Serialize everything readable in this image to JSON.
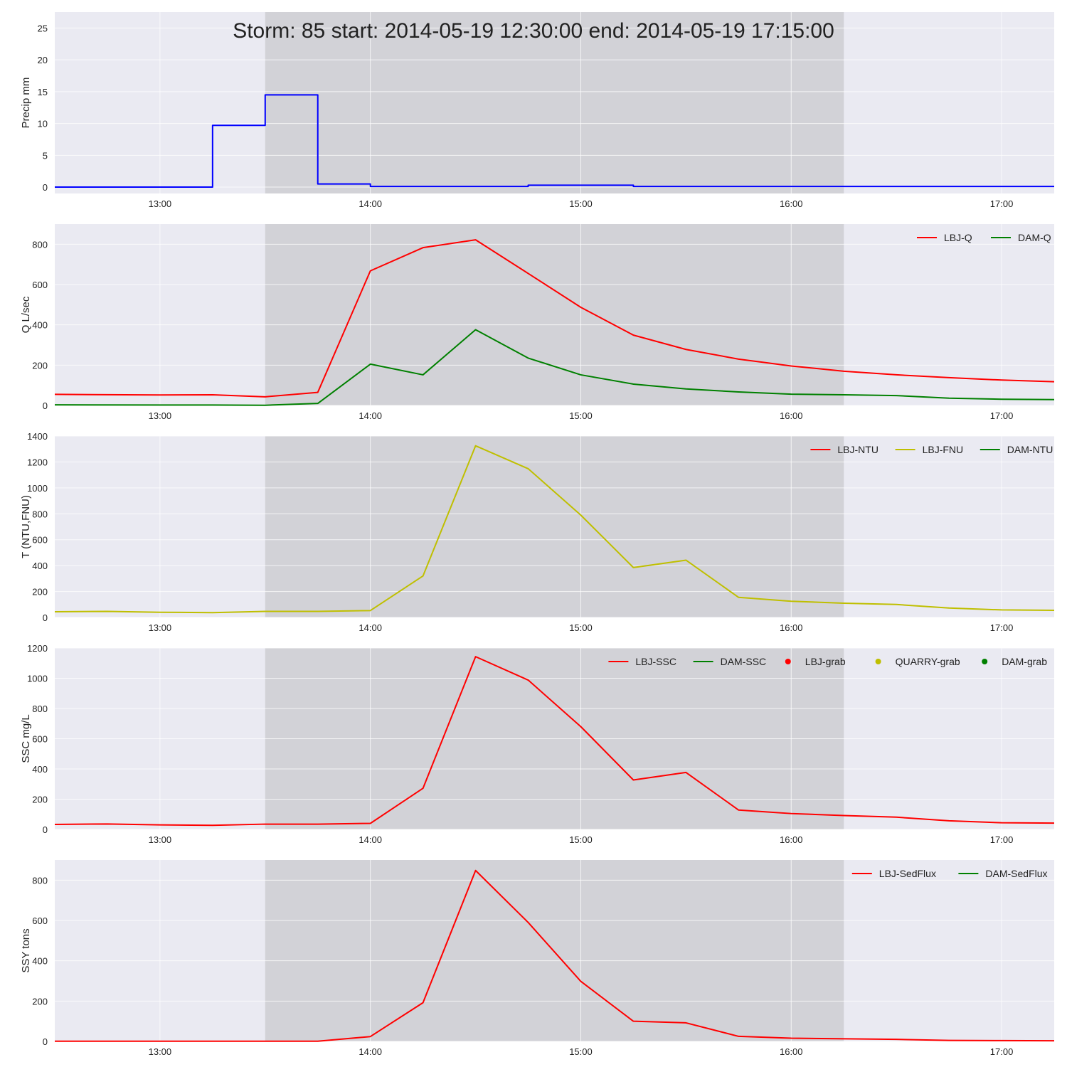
{
  "title": "Storm: 85 start: 2014-05-19 12:30:00 end: 2014-05-19 17:15:00",
  "colors": {
    "background": "#eaeaf2",
    "grid": "#ffffff",
    "storm_shade": "#c8c8cc"
  },
  "chart_data": [
    {
      "type": "line",
      "ylabel": "Precip mm",
      "xlim": [
        "12:30",
        "17:15"
      ],
      "ylim": [
        -1,
        27.5
      ],
      "yticks": [
        0,
        5,
        10,
        15,
        20,
        25
      ],
      "xticks": [
        "13:00",
        "14:00",
        "15:00",
        "16:00",
        "17:00"
      ],
      "shaded_span": [
        "13:30",
        "16:15"
      ],
      "grid": true,
      "legend": null,
      "series": [
        {
          "style": "steps",
          "color": "#0000ff",
          "x": [
            "12:30",
            "13:15",
            "13:30",
            "13:45",
            "14:00",
            "14:45",
            "15:15",
            "17:15"
          ],
          "values": [
            0,
            9.7,
            14.5,
            0.5,
            0.1,
            0.3,
            0.1,
            0.1
          ]
        }
      ]
    },
    {
      "type": "line",
      "ylabel": "Q L/sec",
      "xlim": [
        "12:30",
        "17:15"
      ],
      "ylim": [
        0,
        900
      ],
      "yticks": [
        0,
        200,
        400,
        600,
        800
      ],
      "xticks": [
        "13:00",
        "14:00",
        "15:00",
        "16:00",
        "17:00"
      ],
      "shaded_span": [
        "13:30",
        "16:15"
      ],
      "grid": true,
      "legend": "top-right",
      "series": [
        {
          "name": "LBJ-Q",
          "color": "#ff0000",
          "x": [
            "12:30",
            "13:00",
            "13:15",
            "13:30",
            "13:45",
            "14:00",
            "14:15",
            "14:30",
            "14:45",
            "15:00",
            "15:15",
            "15:30",
            "15:45",
            "16:00",
            "16:15",
            "16:30",
            "16:45",
            "17:00",
            "17:15"
          ],
          "values": [
            55,
            52,
            53,
            43,
            65,
            668,
            783,
            822,
            655,
            487,
            349,
            278,
            230,
            196,
            170,
            152,
            138,
            126,
            118
          ]
        },
        {
          "name": "DAM-Q",
          "color": "#008000",
          "x": [
            "12:30",
            "13:00",
            "13:15",
            "13:30",
            "13:45",
            "14:00",
            "14:15",
            "14:30",
            "14:45",
            "15:00",
            "15:15",
            "15:30",
            "15:45",
            "16:00",
            "16:15",
            "16:30",
            "16:45",
            "17:00",
            "17:15"
          ],
          "values": [
            3,
            2,
            2,
            1,
            10,
            205,
            152,
            376,
            235,
            152,
            106,
            82,
            67,
            56,
            53,
            49,
            36,
            31,
            29
          ]
        }
      ]
    },
    {
      "type": "line",
      "ylabel": "T (NTU,FNU)",
      "xlim": [
        "12:30",
        "17:15"
      ],
      "ylim": [
        0,
        1400
      ],
      "yticks": [
        0,
        200,
        400,
        600,
        800,
        1000,
        1200,
        1400
      ],
      "xticks": [
        "13:00",
        "14:00",
        "15:00",
        "16:00",
        "17:00"
      ],
      "shaded_span": [
        "13:30",
        "16:15"
      ],
      "grid": true,
      "legend": "top-right",
      "series": [
        {
          "name": "LBJ-NTU",
          "color": "#ff0000",
          "x": [],
          "values": []
        },
        {
          "name": "LBJ-FNU",
          "color": "#bfbf00",
          "x": [
            "12:30",
            "12:45",
            "13:00",
            "13:15",
            "13:30",
            "13:45",
            "14:00",
            "14:15",
            "14:30",
            "14:45",
            "15:00",
            "15:15",
            "15:30",
            "15:45",
            "16:00",
            "16:15",
            "16:30",
            "16:45",
            "17:00",
            "17:15"
          ],
          "values": [
            44,
            47,
            40,
            37,
            47,
            47,
            53,
            320,
            1325,
            1148,
            790,
            385,
            442,
            155,
            125,
            110,
            100,
            73,
            58,
            55
          ]
        },
        {
          "name": "DAM-NTU",
          "color": "#008000",
          "x": [],
          "values": []
        }
      ]
    },
    {
      "type": "line",
      "ylabel": "SSC mg/L",
      "xlim": [
        "12:30",
        "17:15"
      ],
      "ylim": [
        0,
        1200
      ],
      "yticks": [
        0,
        200,
        400,
        600,
        800,
        1000,
        1200
      ],
      "xticks": [
        "13:00",
        "14:00",
        "15:00",
        "16:00",
        "17:00"
      ],
      "shaded_span": [
        "13:30",
        "16:15"
      ],
      "grid": true,
      "legend": "top-right",
      "series": [
        {
          "name": "LBJ-SSC",
          "color": "#ff0000",
          "x": [
            "12:30",
            "12:45",
            "13:00",
            "13:15",
            "13:30",
            "13:45",
            "14:00",
            "14:15",
            "14:30",
            "14:45",
            "15:00",
            "15:15",
            "15:30",
            "15:45",
            "16:00",
            "16:15",
            "16:30",
            "16:45",
            "17:00",
            "17:15"
          ],
          "values": [
            33,
            36,
            30,
            27,
            35,
            35,
            40,
            272,
            1143,
            988,
            680,
            327,
            377,
            128,
            105,
            92,
            81,
            57,
            44,
            42
          ]
        },
        {
          "name": "DAM-SSC",
          "color": "#008000",
          "x": [],
          "values": []
        },
        {
          "name": "LBJ-grab",
          "color": "#ff0000",
          "marker": "dot",
          "x": [],
          "values": []
        },
        {
          "name": "QUARRY-grab",
          "color": "#bfbf00",
          "marker": "dot",
          "x": [],
          "values": []
        },
        {
          "name": "DAM-grab",
          "color": "#008000",
          "marker": "dot",
          "x": [],
          "values": []
        }
      ]
    },
    {
      "type": "line",
      "ylabel": "SSY tons",
      "xlim": [
        "12:30",
        "17:15"
      ],
      "ylim": [
        0,
        900
      ],
      "yticks": [
        0,
        200,
        400,
        600,
        800
      ],
      "xticks": [
        "13:00",
        "14:00",
        "15:00",
        "16:00",
        "17:00"
      ],
      "shaded_span": [
        "13:30",
        "16:15"
      ],
      "grid": true,
      "legend": "top-right",
      "series": [
        {
          "name": "LBJ-SedFlux",
          "color": "#ff0000",
          "x": [
            "12:30",
            "13:00",
            "13:30",
            "13:45",
            "14:00",
            "14:15",
            "14:30",
            "14:45",
            "15:00",
            "15:15",
            "15:30",
            "15:45",
            "16:00",
            "16:30",
            "16:45",
            "17:00",
            "17:15"
          ],
          "values": [
            1,
            1,
            1,
            1,
            24,
            192,
            848,
            590,
            298,
            100,
            92,
            25,
            16,
            10,
            5,
            4,
            3
          ]
        },
        {
          "name": "DAM-SedFlux",
          "color": "#008000",
          "x": [],
          "values": []
        }
      ]
    }
  ]
}
